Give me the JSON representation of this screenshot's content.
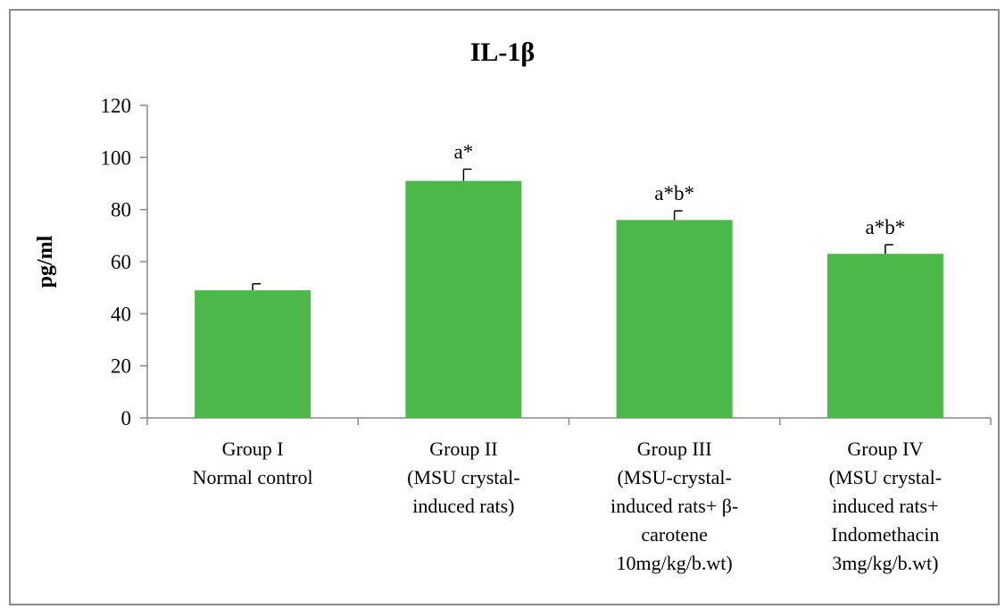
{
  "chart_data": {
    "type": "bar",
    "title": "IL-1β",
    "xlabel": "",
    "ylabel": "pg/ml",
    "ylim": [
      0,
      120
    ],
    "yticks": [
      0,
      20,
      40,
      60,
      80,
      100,
      120
    ],
    "grid": false,
    "categories": [
      [
        "Group I",
        "Normal control"
      ],
      [
        "Group II",
        "(MSU crystal-",
        "induced rats)"
      ],
      [
        "Group III",
        "(MSU-crystal-",
        "induced rats+ β-",
        "carotene",
        "10mg/kg/b.wt)"
      ],
      [
        "Group IV",
        "(MSU crystal-",
        "induced rats+",
        "Indomethacin",
        "3mg/kg/b.wt)"
      ]
    ],
    "values": [
      49,
      91,
      76,
      63
    ],
    "errors": [
      2.5,
      4.5,
      3.5,
      3.5
    ],
    "annotations": [
      "",
      "a*",
      "a*b*",
      "a*b*"
    ],
    "bar_color": "#4cb84a",
    "axis_color": "#8a8a8a"
  }
}
